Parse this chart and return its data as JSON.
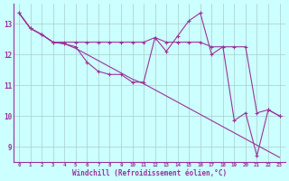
{
  "xlabel": "Windchill (Refroidissement éolien,°C)",
  "hours": [
    0,
    1,
    2,
    3,
    4,
    5,
    6,
    7,
    8,
    9,
    10,
    11,
    12,
    13,
    14,
    15,
    16,
    17,
    18,
    19,
    20,
    21,
    22,
    23
  ],
  "line_jagged": [
    13.35,
    12.85,
    12.65,
    12.4,
    12.35,
    12.25,
    11.75,
    11.45,
    11.35,
    11.35,
    11.1,
    11.1,
    12.55,
    12.1,
    12.6,
    13.1,
    13.35,
    12.0,
    12.25,
    9.85,
    10.1,
    8.7,
    10.2,
    10.0
  ],
  "line_flat": [
    13.35,
    12.85,
    12.65,
    12.4,
    12.4,
    12.4,
    12.4,
    12.4,
    12.4,
    12.4,
    12.4,
    12.4,
    12.55,
    12.4,
    12.4,
    12.4,
    12.4,
    12.25,
    12.25,
    12.25,
    12.25,
    10.1,
    10.2,
    10.0
  ],
  "line_trend": [
    13.35,
    12.85,
    12.65,
    12.4,
    12.35,
    12.2,
    12.0,
    11.8,
    11.6,
    11.4,
    11.2,
    11.05,
    10.85,
    10.65,
    10.45,
    10.25,
    10.05,
    9.85,
    9.65,
    9.45,
    9.25,
    9.05,
    8.85,
    8.65
  ],
  "line_color": "#993399",
  "bg_color": "#ccffff",
  "grid_color": "#aacccc",
  "ylim": [
    8.5,
    13.65
  ],
  "yticks": [
    9,
    10,
    11,
    12,
    13
  ],
  "xlim": [
    -0.5,
    23.5
  ]
}
